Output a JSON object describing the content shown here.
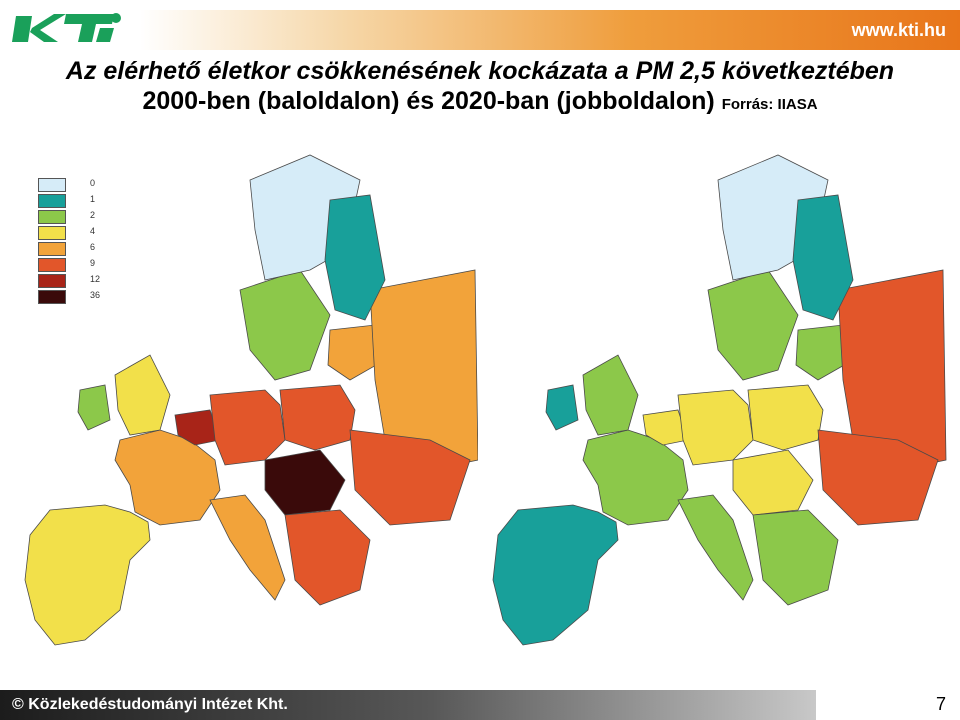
{
  "header": {
    "logo_text": "KTI",
    "url": "www.kti.hu"
  },
  "title": {
    "line1": "Az elérhető életkor csökkenésének kockázata a PM 2,5 következtében",
    "line2": "2000-ben (baloldalon)  és 2020-ban (jobboldalon)",
    "source": "Forrás: IIASA"
  },
  "legend": {
    "items": [
      {
        "label": "0",
        "color": "#d6ecf8"
      },
      {
        "label": "1",
        "color": "#18a09a"
      },
      {
        "label": "2",
        "color": "#8cc84a"
      },
      {
        "label": "4",
        "color": "#f2e04a"
      },
      {
        "label": "6",
        "color": "#f2a33a"
      },
      {
        "label": "9",
        "color": "#e2562a"
      },
      {
        "label": "12",
        "color": "#a82418"
      },
      {
        "label": "36",
        "color": "#3a0a0a"
      }
    ]
  },
  "maps": {
    "left": {
      "year_hint": "2000"
    },
    "right": {
      "year_hint": "2020"
    }
  },
  "colors": {
    "sea": "#ffffff",
    "border": "#4a4a4a",
    "outside": "#ffffff"
  },
  "footer": {
    "text": "© Közlekedéstudományi Intézet Kht.",
    "page_number": "7"
  }
}
